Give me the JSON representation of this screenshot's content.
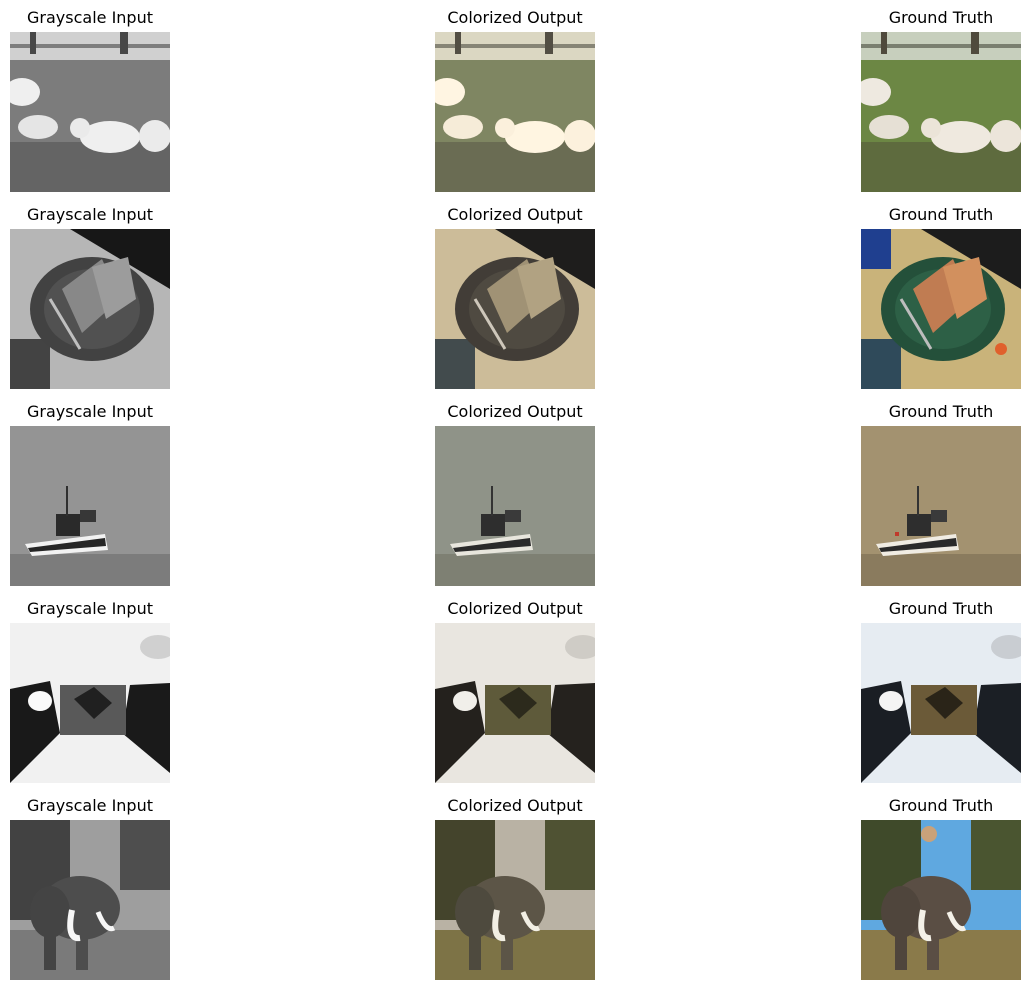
{
  "columns": [
    "Grayscale Input",
    "Colorized Output",
    "Ground Truth"
  ],
  "rows": [
    {
      "scene": "cows-in-field"
    },
    {
      "scene": "sandwich-on-plate"
    },
    {
      "scene": "boat-on-water"
    },
    {
      "scene": "blanket-on-snow"
    },
    {
      "scene": "elephant-by-trees"
    }
  ]
}
